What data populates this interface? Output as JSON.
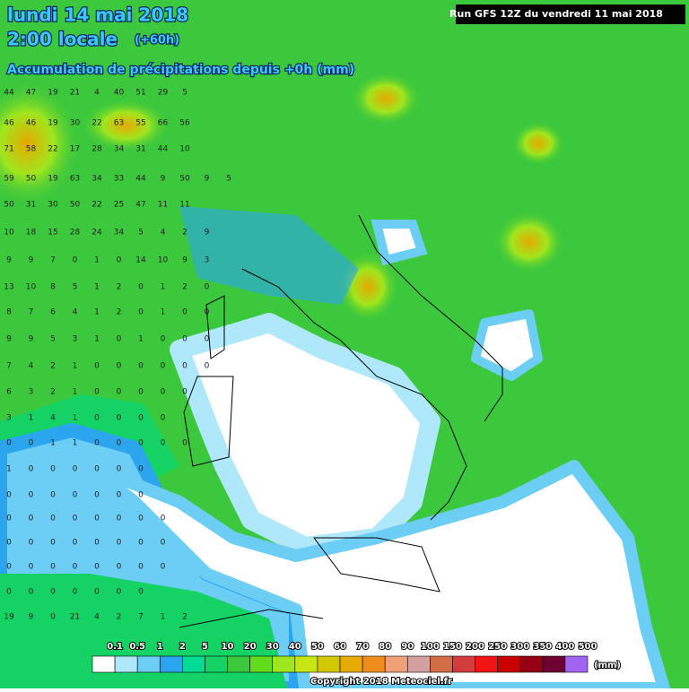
{
  "header": {
    "date": "lundi 14 mai 2018",
    "time": "2:00 locale",
    "offset": "(+60h)",
    "subtitle": "Accumulation de précipitations depuis +0h (mm)",
    "run": "Run GFS 12Z du vendredi 11 mai 2018"
  },
  "grid": {
    "rows": [
      [
        44,
        47,
        19,
        21,
        4,
        40,
        51,
        29,
        5
      ],
      [
        46,
        46,
        19,
        30,
        22,
        63,
        55,
        66,
        56
      ],
      [
        71,
        58,
        22,
        17,
        28,
        34,
        31,
        44,
        10
      ],
      [
        59,
        50,
        19,
        63,
        34,
        33,
        44,
        9,
        50,
        9,
        5
      ],
      [
        50,
        31,
        30,
        50,
        22,
        25,
        47,
        11,
        11
      ],
      [
        10,
        18,
        15,
        28,
        24,
        34,
        5,
        4,
        2,
        9
      ],
      [
        9,
        9,
        7,
        0,
        1,
        0,
        14,
        10,
        9,
        3
      ],
      [
        13,
        10,
        8,
        5,
        1,
        2,
        0,
        1,
        2,
        0
      ],
      [
        8,
        7,
        6,
        4,
        1,
        2,
        0,
        1,
        0,
        0
      ],
      [
        9,
        9,
        5,
        3,
        1,
        0,
        1,
        0,
        0,
        0
      ],
      [
        7,
        4,
        2,
        1,
        0,
        0,
        0,
        0,
        0,
        0
      ],
      [
        6,
        3,
        2,
        1,
        0,
        0,
        0,
        0,
        0
      ],
      [
        3,
        1,
        4,
        1,
        0,
        0,
        0,
        0
      ],
      [
        0,
        0,
        1,
        1,
        0,
        0,
        0,
        0,
        0
      ],
      [
        1,
        0,
        0,
        0,
        0,
        0,
        0
      ],
      [
        0,
        0,
        0,
        0,
        0,
        0,
        0
      ],
      [
        0,
        0,
        0,
        0,
        0,
        0,
        0,
        0
      ],
      [
        0,
        0,
        0,
        0,
        0,
        0,
        0,
        0
      ],
      [
        0,
        0,
        0,
        0,
        0,
        0,
        0,
        0
      ],
      [
        0,
        0,
        0,
        0,
        0,
        0,
        0
      ],
      [
        19,
        9,
        0,
        21,
        4,
        2,
        7,
        1,
        2
      ]
    ]
  },
  "legend": {
    "thresholds": [
      0.1,
      0.5,
      1,
      2,
      5,
      10,
      20,
      30,
      40,
      50,
      60,
      70,
      80,
      90,
      100,
      150,
      200,
      250,
      300,
      350,
      400,
      500
    ],
    "colors": [
      "#ffffff",
      "#aee8fa",
      "#6ccdf5",
      "#2ba5ee",
      "#00dc96",
      "#14d264",
      "#3cc83c",
      "#64dc1e",
      "#a0e61e",
      "#c8e614",
      "#d2c800",
      "#e6aa00",
      "#f08c1e",
      "#f0a078",
      "#d2a0a0",
      "#d26e46",
      "#d23c3c",
      "#f01414",
      "#c80000",
      "#960014",
      "#6e0032",
      "#a064f0"
    ],
    "unit": "(mm)"
  },
  "footer": {
    "copyright": "Copyright 2018 Meteociel.fr"
  }
}
